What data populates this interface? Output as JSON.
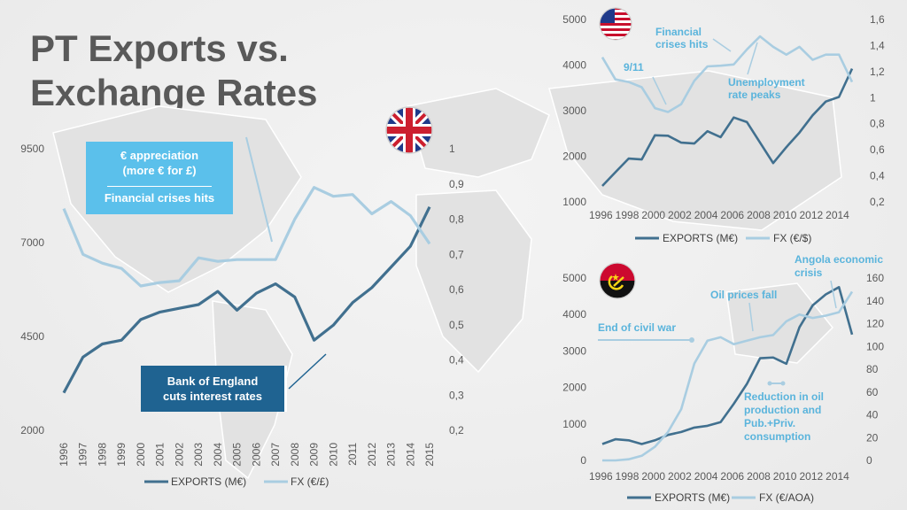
{
  "page": {
    "title_line1": "PT Exports vs.",
    "title_line2": "Exchange Rates"
  },
  "callouts": {
    "uk_box_line1": "€ appreciation",
    "uk_box_line2": "(more € for £)",
    "uk_box_line3": "Financial crises hits",
    "uk_boe_line1": "Bank of England",
    "uk_boe_line2": "cuts interest rates",
    "colors": {
      "light_box": "#5bc0eb",
      "dark_box": "#1f6391"
    }
  },
  "colors": {
    "exports": "#41708f",
    "fx": "#a9cde1",
    "annotation": "#5ab4dc"
  },
  "chart_data": [
    {
      "id": "uk",
      "type": "line",
      "flag": "uk-flag-icon",
      "x": [
        "1996",
        "1997",
        "1998",
        "1999",
        "2000",
        "2001",
        "2002",
        "2003",
        "2004",
        "2005",
        "2006",
        "2007",
        "2008",
        "2009",
        "2010",
        "2011",
        "2012",
        "2013",
        "2014",
        "2015"
      ],
      "series": [
        {
          "name": "EXPORTS (M€)",
          "axis": "left",
          "values": [
            3000,
            3950,
            4300,
            4400,
            4950,
            5150,
            5250,
            5350,
            5700,
            5200,
            5650,
            5900,
            5550,
            4400,
            4800,
            5400,
            5800,
            6350,
            6900,
            7950
          ]
        },
        {
          "name": "FX (€/£)",
          "axis": "right",
          "values": [
            0.83,
            0.7,
            0.675,
            0.66,
            0.61,
            0.62,
            0.625,
            0.69,
            0.68,
            0.685,
            0.685,
            0.685,
            0.8,
            0.89,
            0.865,
            0.87,
            0.815,
            0.85,
            0.81,
            0.73
          ]
        }
      ],
      "y_left": {
        "min": 2000,
        "max": 9500,
        "ticks": [
          "2000",
          "4500",
          "7000",
          "9500"
        ]
      },
      "y_right": {
        "min": 0.2,
        "max": 1.0,
        "ticks": [
          "0,2",
          "0,3",
          "0,4",
          "0,5",
          "0,6",
          "0,7",
          "0,8",
          "0,9",
          "1"
        ]
      },
      "legend": "bottom"
    },
    {
      "id": "us",
      "type": "line",
      "flag": "us-flag-icon",
      "x": [
        "1996",
        "1997",
        "1998",
        "1999",
        "2000",
        "2001",
        "2002",
        "2003",
        "2004",
        "2005",
        "2006",
        "2007",
        "2008",
        "2009",
        "2010",
        "2011",
        "2012",
        "2013",
        "2014",
        "2015"
      ],
      "x_labels": [
        "1996",
        "1998",
        "2000",
        "2002",
        "2004",
        "2006",
        "2008",
        "2010",
        "2012",
        "2014"
      ],
      "series": [
        {
          "name": "EXPORTS (M€)",
          "axis": "left",
          "values": [
            1350,
            1650,
            1950,
            1930,
            2460,
            2450,
            2300,
            2280,
            2550,
            2420,
            2850,
            2750,
            2300,
            1850,
            2200,
            2520,
            2900,
            3200,
            3300,
            3920
          ]
        },
        {
          "name": "FX (€/$)",
          "axis": "right",
          "values": [
            1.31,
            1.14,
            1.12,
            1.08,
            0.92,
            0.89,
            0.95,
            1.13,
            1.24,
            1.245,
            1.255,
            1.37,
            1.47,
            1.39,
            1.33,
            1.39,
            1.29,
            1.33,
            1.33,
            1.12
          ]
        }
      ],
      "y_left": {
        "min": 1000,
        "max": 5000,
        "ticks": [
          "1000",
          "2000",
          "3000",
          "4000",
          "5000"
        ]
      },
      "y_right": {
        "min": 0.2,
        "max": 1.6,
        "ticks": [
          "0,2",
          "0,4",
          "0,6",
          "0,8",
          "1",
          "1,2",
          "1,4",
          "1,6"
        ]
      },
      "annotations": [
        "9/11",
        "Financial",
        "crises hits",
        "Unemployment",
        "rate peaks"
      ],
      "legend": "bottom"
    },
    {
      "id": "ao",
      "type": "line",
      "flag": "angola-flag-icon",
      "x": [
        "1996",
        "1997",
        "1998",
        "1999",
        "2000",
        "2001",
        "2002",
        "2003",
        "2004",
        "2005",
        "2006",
        "2007",
        "2008",
        "2009",
        "2010",
        "2011",
        "2012",
        "2013",
        "2014",
        "2015"
      ],
      "x_labels": [
        "1996",
        "1998",
        "2000",
        "2002",
        "2004",
        "2006",
        "2008",
        "2010",
        "2012",
        "2014"
      ],
      "series": [
        {
          "name": "EXPORTS (M€)",
          "axis": "left",
          "values": [
            450,
            580,
            550,
            450,
            550,
            700,
            780,
            900,
            950,
            1050,
            1550,
            2100,
            2800,
            2820,
            2650,
            3650,
            4250,
            4550,
            4750,
            3450
          ]
        },
        {
          "name": "FX (€/AOA)",
          "axis": "right",
          "values": [
            0,
            0,
            1,
            4,
            12,
            25,
            45,
            85,
            105,
            108,
            102,
            105,
            108,
            110,
            122,
            128,
            125,
            127,
            130,
            148
          ]
        }
      ],
      "y_left": {
        "min": 0,
        "max": 5000,
        "ticks": [
          "0",
          "1000",
          "2000",
          "3000",
          "4000",
          "5000"
        ]
      },
      "y_right": {
        "min": 0,
        "max": 160,
        "ticks": [
          "0",
          "20",
          "40",
          "60",
          "80",
          "100",
          "120",
          "140",
          "160"
        ]
      },
      "annotations": [
        "End of civil war",
        "Oil prices fall",
        "Angola economic",
        "crisis",
        "Reduction in oil",
        "production  and",
        "Pub.+Priv.",
        "consumption"
      ],
      "legend": "bottom"
    }
  ]
}
